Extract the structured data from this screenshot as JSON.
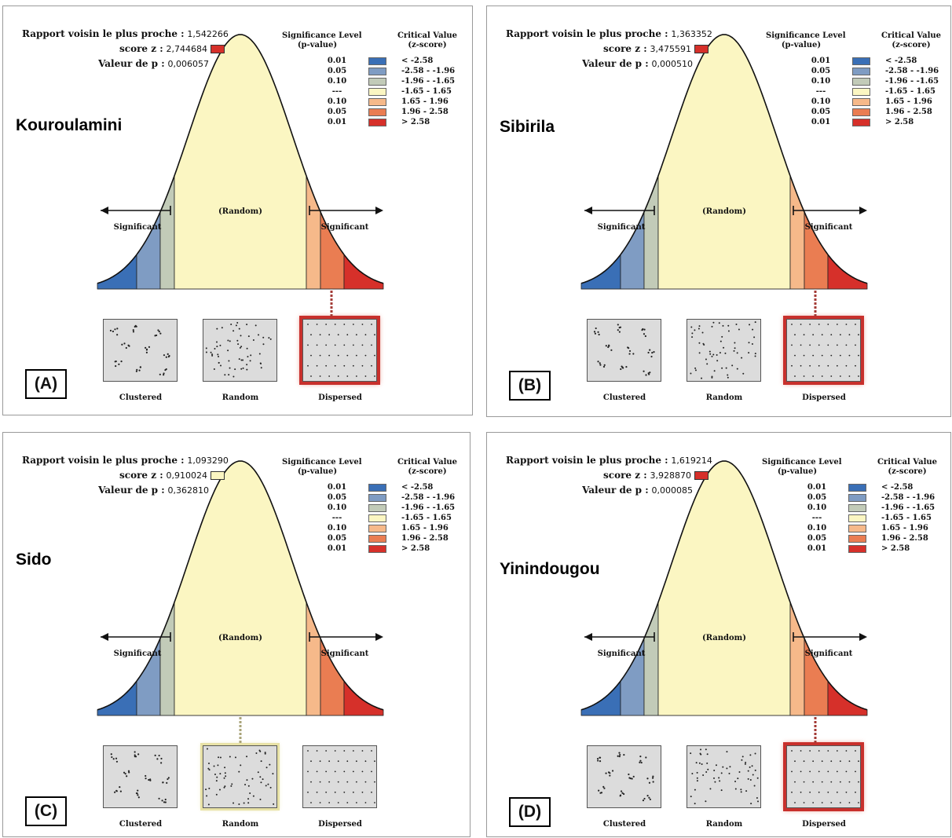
{
  "legend_header": {
    "sig_line1": "Significance Level",
    "sig_line2": "(p-value)",
    "crit_line1": "Critical Value",
    "crit_line2": "(z-score)"
  },
  "legend_rows": [
    {
      "p": "0.01",
      "range": "< -2.58",
      "color": "#3a6fb6"
    },
    {
      "p": "0.05",
      "range": "-2.58 - -1.96",
      "color": "#7f9cc3"
    },
    {
      "p": "0.10",
      "range": "-1.96 - -1.65",
      "color": "#c2cbb8"
    },
    {
      "p": "---",
      "range": "-1.65 - 1.65",
      "color": "#fbf6c2"
    },
    {
      "p": "0.10",
      "range": "1.65 - 1.96",
      "color": "#f6b98a"
    },
    {
      "p": "0.05",
      "range": "1.96 - 2.58",
      "color": "#ea7d52"
    },
    {
      "p": "0.01",
      "range": "> 2.58",
      "color": "#d6302a"
    }
  ],
  "labels": {
    "random_center": "(Random)",
    "significant_left": "Significant",
    "significant_right": "Significant",
    "thumb_clustered": "Clustered",
    "thumb_random": "Random",
    "thumb_dispersed": "Dispersed",
    "ratio_label": "Rapport voisin le plus proche :",
    "z_label": "score z :",
    "p_label": "Valeur de p :"
  },
  "panels": [
    {
      "letter": "(A)",
      "site": "Kouroulamini",
      "ratio": "1,542266",
      "zscore": "2,744684",
      "pvalue": "0,006057",
      "pattern": "Dispersed",
      "z_color": "#d6302a"
    },
    {
      "letter": "(B)",
      "site": "Sibirila",
      "ratio": "1,363352",
      "zscore": "3,475591",
      "pvalue": "0,000510",
      "pattern": "Dispersed",
      "z_color": "#d6302a"
    },
    {
      "letter": "(C)",
      "site": "Sido",
      "ratio": "1,093290",
      "zscore": "0,910024",
      "pvalue": "0,362810",
      "pattern": "Random",
      "z_color": "#fbf6c2"
    },
    {
      "letter": "(D)",
      "site": "Yinindougou",
      "ratio": "1,619214",
      "zscore": "3,928870",
      "pvalue": "0,000085",
      "pattern": "Dispersed",
      "z_color": "#d6302a"
    }
  ]
}
